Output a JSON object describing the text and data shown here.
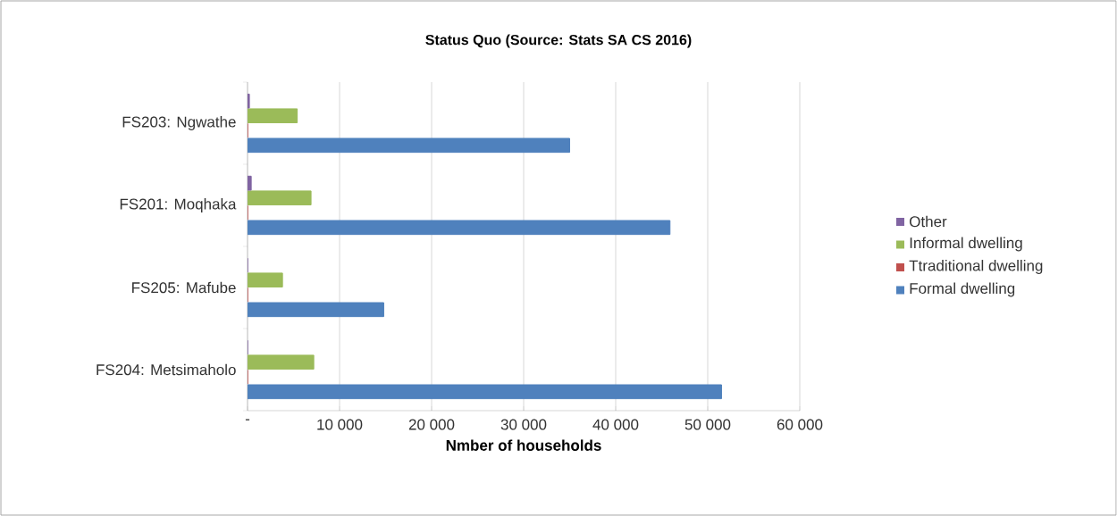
{
  "chart_data": {
    "type": "bar",
    "orientation": "horizontal",
    "title": "Status Quo (Source: Stats SA CS 2016)",
    "xlabel": "Nmber of households",
    "categories": [
      "FS203: Ngwathe",
      "FS201: Moqhaka",
      "FS205: Mafube",
      "FS204: Metsimaholo"
    ],
    "series": [
      {
        "name": "Formal dwelling",
        "color": "#4f81bd",
        "values": [
          35000,
          45900,
          14800,
          51500
        ]
      },
      {
        "name": "Ttraditional dwelling",
        "color": "#c0504d",
        "values": [
          0,
          0,
          0,
          0
        ]
      },
      {
        "name": "Informal dwelling",
        "color": "#9bbb59",
        "values": [
          5400,
          6900,
          3800,
          7200
        ]
      },
      {
        "name": "Other",
        "color": "#8064a2",
        "values": [
          200,
          400,
          0,
          0
        ]
      }
    ],
    "xlim": [
      0,
      60000
    ],
    "xticks": [
      {
        "value": 0,
        "label": "-"
      },
      {
        "value": 10000,
        "label": "10 000"
      },
      {
        "value": 20000,
        "label": "20 000"
      },
      {
        "value": 30000,
        "label": "30 000"
      },
      {
        "value": 40000,
        "label": "40 000"
      },
      {
        "value": 50000,
        "label": "50 000"
      },
      {
        "value": 60000,
        "label": "60 000"
      }
    ],
    "grid": "x",
    "legend": "right"
  }
}
